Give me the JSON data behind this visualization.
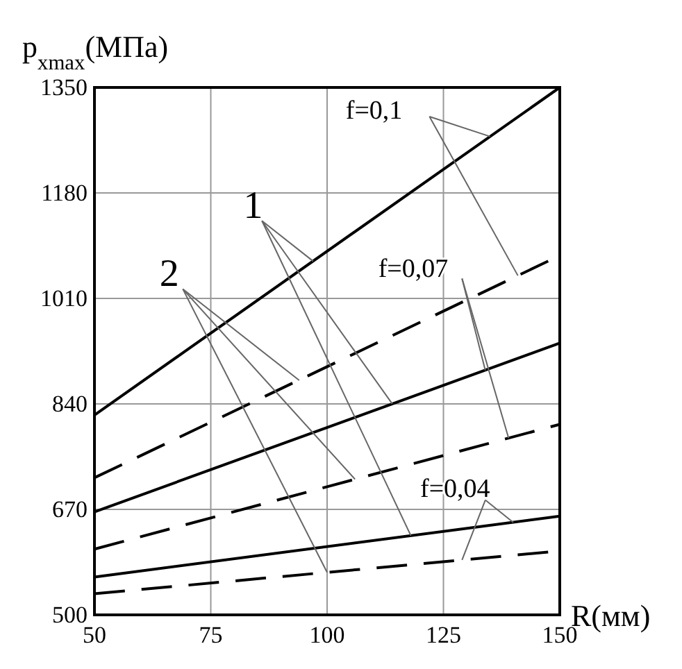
{
  "chart_data": {
    "type": "line",
    "xlabel": "R(мм)",
    "ylabel": "p$_{xmax}$(МПа)",
    "x": [
      50,
      150
    ],
    "series": [
      {
        "color": "#000000",
        "values": [
          822,
          1350
        ],
        "line_style": "solid"
      },
      {
        "color": "#000000",
        "values": [
          721,
          1079
        ],
        "line_style": "dashed"
      },
      {
        "color": "#000000",
        "values": [
          666,
          938
        ],
        "line_style": "solid"
      },
      {
        "color": "#000000",
        "values": [
          606,
          807
        ],
        "line_style": "dashed"
      },
      {
        "color": "#000000",
        "values": [
          561,
          659
        ],
        "line_style": "solid"
      },
      {
        "color": "#000000",
        "values": [
          534,
          603
        ],
        "line_style": "dashed"
      }
    ],
    "xlim": [
      50,
      150
    ],
    "xticks": [
      50,
      75,
      100,
      125,
      150
    ],
    "ylim": [
      500,
      1350
    ],
    "yticks": [
      500,
      670,
      840,
      1010,
      1180,
      1350
    ],
    "grid": true,
    "annotations": [
      {
        "text": "f=0,1",
        "x": 135,
        "y": 1271
      },
      {
        "text": "f=0,07",
        "x": 134,
        "y": 894
      },
      {
        "text": "f=0,04",
        "x": 140,
        "y": 649
      },
      {
        "text": "1",
        "x": 97,
        "y": 1070
      },
      {
        "text": "2",
        "x": 94,
        "y": 878
      }
    ]
  }
}
